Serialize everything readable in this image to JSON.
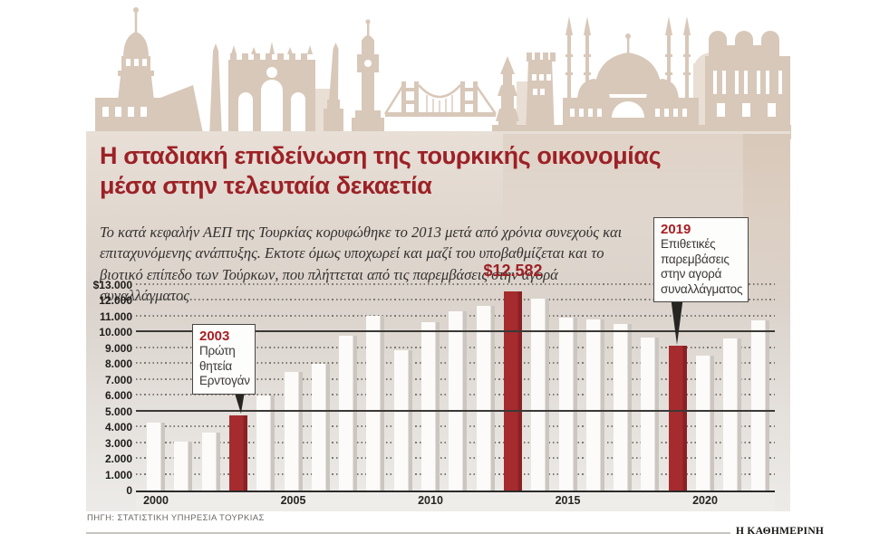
{
  "header": {
    "title_line1": "Η σταδιακή επιδείνωση της τουρκικής οικονομίας",
    "title_line2": "μέσα στην τελευταία δεκαετία",
    "subtitle": "Το κατά κεφαλήν ΑΕΠ της Τουρκίας κορυφώθηκε το 2013 μετά από χρόνια συνεχούς και επιταχυνόμενης ανάπτυξης. Εκτοτε όμως υποχωρεί και μαζί του υποβαθμίζεται και το βιοτικό επίπεδο των Τούρκων, που πλήττεται από τις παρεμβάσεις στην αγορά συναλλάγματος."
  },
  "chart_data": {
    "type": "bar",
    "title": "Η σταδιακή επιδείνωση της τουρκικής οικονομίας μέσα στην τελευταία δεκαετία",
    "xlabel": "",
    "ylabel": "",
    "ylim": [
      0,
      13000
    ],
    "grid": "dotted horizontal each 1000, solid emphasis at 5000 and 10000",
    "y_tick_labels": [
      "$13.000",
      "12.000",
      "11.000",
      "10.000",
      "9.000",
      "8.000",
      "7.000",
      "6.000",
      "5.000",
      "4.000",
      "3.000",
      "2.000",
      "1.000",
      "0"
    ],
    "x_ticks": [
      2000,
      2005,
      2010,
      2015,
      2020
    ],
    "highlight_years": [
      2003,
      2013,
      2019
    ],
    "solid_gridlines": [
      5000,
      10000
    ],
    "peak_label": "$12.582",
    "peak_year": 2013,
    "bars": [
      {
        "year": 2000,
        "value": 4300
      },
      {
        "year": 2001,
        "value": 3100
      },
      {
        "year": 2002,
        "value": 3650
      },
      {
        "year": 2003,
        "value": 4750
      },
      {
        "year": 2004,
        "value": 6000
      },
      {
        "year": 2005,
        "value": 7500
      },
      {
        "year": 2006,
        "value": 8000
      },
      {
        "year": 2007,
        "value": 9800
      },
      {
        "year": 2008,
        "value": 11050
      },
      {
        "year": 2009,
        "value": 8900
      },
      {
        "year": 2010,
        "value": 10650
      },
      {
        "year": 2011,
        "value": 11350
      },
      {
        "year": 2012,
        "value": 11700
      },
      {
        "year": 2013,
        "value": 12582
      },
      {
        "year": 2014,
        "value": 12150
      },
      {
        "year": 2015,
        "value": 10950
      },
      {
        "year": 2016,
        "value": 10800
      },
      {
        "year": 2017,
        "value": 10550
      },
      {
        "year": 2018,
        "value": 9700
      },
      {
        "year": 2019,
        "value": 9150
      },
      {
        "year": 2020,
        "value": 8550
      },
      {
        "year": 2021,
        "value": 9600
      },
      {
        "year": 2022,
        "value": 10750
      }
    ],
    "colors": {
      "bar": "#fcfbf9",
      "bar_shadow": "#ccc6c0",
      "highlight_bar": "#a52b2e",
      "highlight_shadow": "#8a2125",
      "accent_red": "#9c2126",
      "skyline": "#d8c8b9",
      "panel_top": "#e8dfd7",
      "panel_bottom": "#edebe8"
    }
  },
  "annotations": [
    {
      "year": "2003",
      "lines": [
        "Πρώτη",
        "θητεία",
        "Ερντογάν"
      ]
    },
    {
      "year": "2019",
      "lines": [
        "Επιθετικές",
        "παρεμβάσεις",
        "στην αγορά",
        "συναλλάγματος"
      ]
    }
  ],
  "footer": {
    "source": "ΠΗΓΗ: ΣΤΑΤΙΣΤΙΚΗ ΥΠΗΡΕΣΙΑ ΤΟΥΡΚΙΑΣ",
    "brand": "Η ΚΑΘΗΜΕΡΙΝΗ"
  }
}
